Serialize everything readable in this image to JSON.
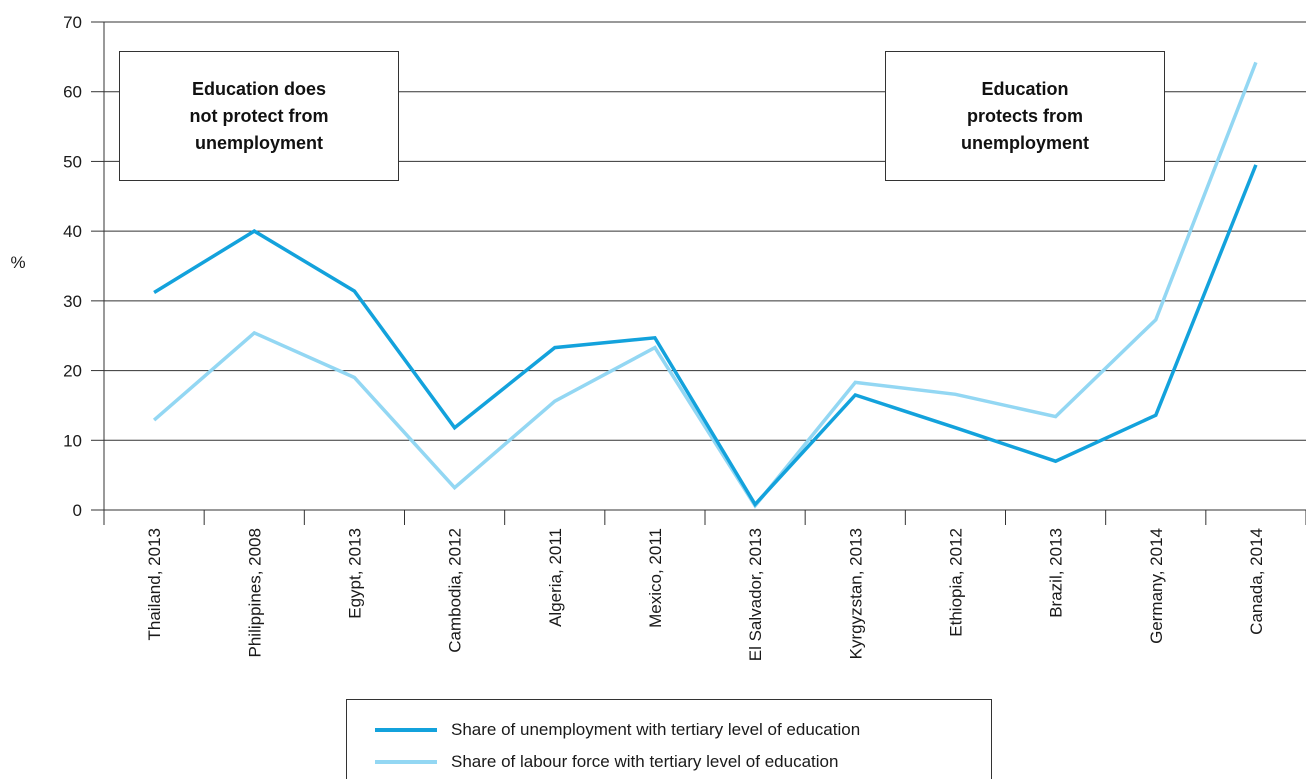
{
  "chart_data": {
    "type": "line",
    "ylabel": "%",
    "ylim": [
      0,
      70
    ],
    "yticks": [
      "0",
      "10",
      "20",
      "30",
      "40",
      "50",
      "60",
      "70"
    ],
    "grid": true,
    "categories": [
      "Thailand, 2013",
      "Philippines, 2008",
      "Egypt, 2013",
      "Cambodia, 2012",
      "Algeria, 2011",
      "Mexico, 2011",
      "El Salvador, 2013",
      "Kyrgyzstan, 2013",
      "Ethiopia, 2012",
      "Brazil, 2013",
      "Germany, 2014",
      "Canada, 2014"
    ],
    "series": [
      {
        "name": "Share of unemployment with tertiary level of education",
        "color": "#13a2dc",
        "values": [
          31.2,
          40.0,
          31.4,
          11.8,
          23.3,
          24.7,
          0.8,
          16.5,
          11.8,
          7.0,
          13.6,
          49.5
        ]
      },
      {
        "name": "Share of labour force with tertiary level of education",
        "color": "#93d7f3",
        "values": [
          12.9,
          25.4,
          19.0,
          3.2,
          15.6,
          23.3,
          0.6,
          18.3,
          16.6,
          13.4,
          27.3,
          64.2
        ]
      }
    ],
    "annotations": [
      {
        "text": "Education does\nnot protect from\nunemployment",
        "position": "top-left"
      },
      {
        "text": "Education\nprotects from\nunemployment",
        "position": "top-right"
      }
    ],
    "legend_placement": "bottom-center"
  }
}
